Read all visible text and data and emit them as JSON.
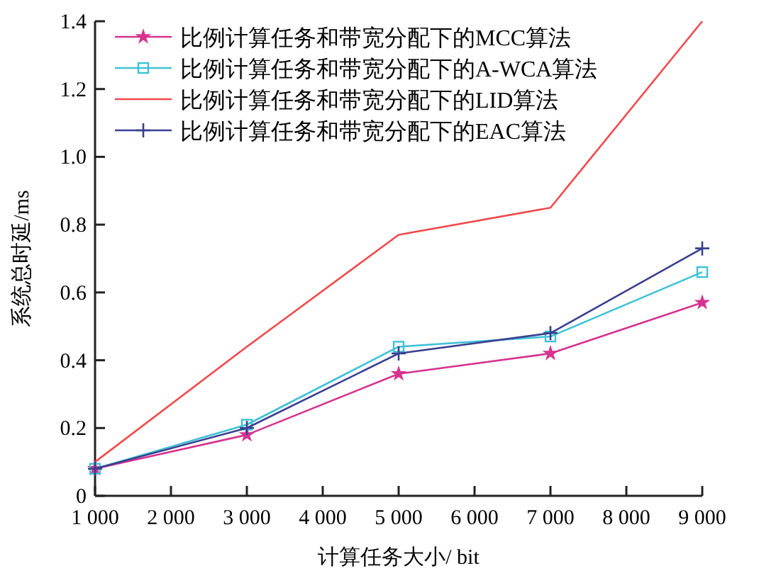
{
  "chart_data": {
    "type": "line",
    "xlabel": "计算任务大小/ bit",
    "ylabel": "系统总时延/ms",
    "x": [
      1000,
      3000,
      5000,
      7000,
      9000
    ],
    "series": [
      {
        "name": "比例计算任务和带宽分配下的MCC算法",
        "color": "#d6338f",
        "marker": "star",
        "values": [
          0.08,
          0.18,
          0.36,
          0.42,
          0.57
        ]
      },
      {
        "name": "比例计算任务和带宽分配下的A-WCA算法",
        "color": "#3fc1d6",
        "marker": "square",
        "values": [
          0.08,
          0.21,
          0.44,
          0.47,
          0.66
        ]
      },
      {
        "name": "比例计算任务和带宽分配下的LID算法",
        "color": "#f2494d",
        "marker": "none",
        "values": [
          0.1,
          0.44,
          0.77,
          0.85,
          1.4
        ]
      },
      {
        "name": "比例计算任务和带宽分配下的EAC算法",
        "color": "#3a3f8f",
        "marker": "cross",
        "values": [
          0.08,
          0.2,
          0.42,
          0.48,
          0.73
        ]
      }
    ],
    "xlim": [
      1000,
      9000
    ],
    "xticks": [
      {
        "value": 1000,
        "label": "1 000"
      },
      {
        "value": 2000,
        "label": "2 000"
      },
      {
        "value": 3000,
        "label": "3 000"
      },
      {
        "value": 4000,
        "label": "4 000"
      },
      {
        "value": 5000,
        "label": "5 000"
      },
      {
        "value": 6000,
        "label": "6 000"
      },
      {
        "value": 7000,
        "label": "7 000"
      },
      {
        "value": 8000,
        "label": "8 000"
      },
      {
        "value": 9000,
        "label": "9 000"
      }
    ],
    "ylim": [
      0,
      1.4
    ],
    "yticks": [
      0,
      0.2,
      0.4,
      0.6,
      0.8,
      {
        "value": 1,
        "label": "1.0"
      },
      1.2,
      1.4
    ],
    "grid": false,
    "legend": "top left",
    "line_style": "solid"
  }
}
